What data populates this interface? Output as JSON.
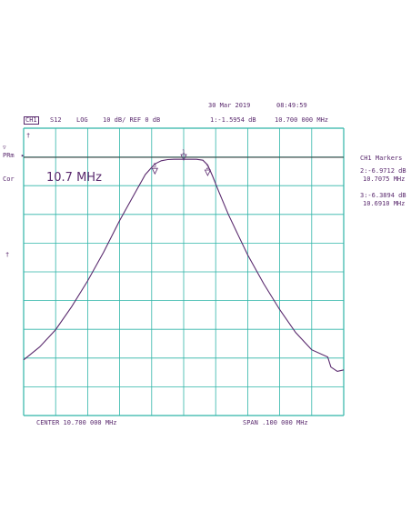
{
  "header": {
    "date": "30 Mar 2019",
    "time": "08:49:59",
    "channel": "CH1",
    "param": "S12",
    "format": "LOG",
    "scale": "10 dB/ REF 0 dB",
    "marker_readout": "1:-1.5954 dB",
    "marker_freq": "10.700 000 MHz"
  },
  "left_labels": {
    "marker_symbol": "▽",
    "prm": "PRm",
    "cor": "Cor",
    "ref_arrow": "▸",
    "mid_marker": "†",
    "top_tick": "†"
  },
  "markers_panel": {
    "title": "CH1 Markers",
    "m2_value": "2:-6.9712 dB",
    "m2_freq": "10.7075 MHz",
    "m3_value": "3:-6.3894 dB",
    "m3_freq": "10.6910 MHz"
  },
  "footer": {
    "center": "CENTER  10.700 000 MHz",
    "span": "SPAN  .100 000 MHz"
  },
  "colors": {
    "trace": "#5a2a6e",
    "grid": "#2fb5a8",
    "ref": "#333333"
  },
  "chart_data": {
    "type": "line",
    "annotation": "10.7 MHz",
    "xlabel": "",
    "ylabel": "",
    "x_unit": "MHz",
    "y_unit": "dB",
    "xlim": [
      10.65,
      10.75
    ],
    "ylim": [
      -100,
      0
    ],
    "y_ref": 0,
    "grid": true,
    "divisions": {
      "x": 10,
      "y": 10
    },
    "series": [
      {
        "x": [
          10.65,
          10.655,
          10.66,
          10.665,
          10.67,
          10.675,
          10.68,
          10.685,
          10.688,
          10.69,
          10.691,
          10.693,
          10.695,
          10.697,
          10.699,
          10.7,
          10.702,
          10.704,
          10.706,
          10.7075,
          10.709,
          10.711,
          10.714,
          10.717,
          10.72,
          10.725,
          10.73,
          10.735,
          10.74,
          10.745,
          10.746,
          10.748,
          10.75
        ],
        "y": [
          -70.5,
          -66,
          -60,
          -52,
          -43,
          -33,
          -22,
          -12,
          -6,
          -3.5,
          -2.3,
          -1.2,
          -0.8,
          -0.7,
          -0.7,
          -0.7,
          -0.7,
          -0.7,
          -1.0,
          -2.7,
          -6.5,
          -12,
          -20,
          -27,
          -34,
          -44,
          -53,
          -61,
          -67,
          -69.5,
          -73,
          -74.5,
          -74
        ]
      }
    ],
    "markers": [
      {
        "id": "1",
        "x": 10.7,
        "y": -1.5954
      },
      {
        "id": "2",
        "x": 10.7075,
        "y": -6.9712
      },
      {
        "id": "3",
        "x": 10.691,
        "y": -6.3894
      }
    ]
  }
}
